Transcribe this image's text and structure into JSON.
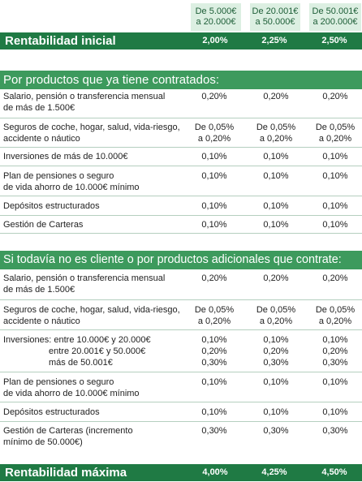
{
  "tiers": [
    "De 5.000€\na 20.000€",
    "De 20.001€\na 50.000€",
    "De 50.001€\na 200.000€"
  ],
  "initial": {
    "label": "Rentabilidad inicial",
    "values": [
      "2,00%",
      "2,25%",
      "2,50%"
    ]
  },
  "section1": {
    "title": "Por productos que ya tiene contratados:",
    "rows": [
      {
        "label": "Salario, pensión o transferencia mensual\nde más de 1.500€",
        "values": [
          "0,20%",
          "0,20%",
          "0,20%"
        ]
      },
      {
        "label": "Seguros de coche, hogar, salud, vida-riesgo,\naccidente o náutico",
        "values": [
          "De 0,05%\na 0,20%",
          "De 0,05%\na 0,20%",
          "De 0,05%\na 0,20%"
        ]
      },
      {
        "label": "Inversiones de más de 10.000€",
        "values": [
          "0,10%",
          "0,10%",
          "0,10%"
        ]
      },
      {
        "label": "Plan de pensiones o seguro\nde vida ahorro de 10.000€ mínimo",
        "values": [
          "0,10%",
          "0,10%",
          "0,10%"
        ]
      },
      {
        "label": "Depósitos estructurados",
        "values": [
          "0,10%",
          "0,10%",
          "0,10%"
        ]
      },
      {
        "label": "Gestión de Carteras",
        "values": [
          "0,10%",
          "0,10%",
          "0,10%"
        ]
      }
    ]
  },
  "section2": {
    "title": "Si todavía no es cliente o por productos adicionales que contrate:",
    "rows": [
      {
        "label": "Salario, pensión o transferencia mensual\nde más de 1.500€",
        "values": [
          "0,20%",
          "0,20%",
          "0,20%"
        ]
      },
      {
        "label": "Seguros de coche, hogar, salud, vida-riesgo,\naccidente o náutico",
        "values": [
          "De 0,05%\na 0,20%",
          "De 0,05%\na 0,20%",
          "De 0,05%\na 0,20%"
        ]
      },
      {
        "label": "Inversiones:  entre 10.000€ y 20.000€",
        "sublabels": [
          "entre 20.001€ y 50.000€",
          "más de 50.001€"
        ],
        "values": [
          "0,10%\n0,20%\n0,30%",
          "0,10%\n0,20%\n0,30%",
          "0,10%\n0,20%\n0,30%"
        ]
      },
      {
        "label": "Plan de pensiones o seguro\nde vida ahorro de 10.000€ mínimo",
        "values": [
          "0,10%",
          "0,10%",
          "0,10%"
        ]
      },
      {
        "label": "Depósitos estructurados",
        "values": [
          "0,10%",
          "0,10%",
          "0,10%"
        ]
      },
      {
        "label": "Gestión de Carteras (incremento\nmínimo de 50.000€)",
        "values": [
          "0,30%",
          "0,30%",
          "0,30%"
        ]
      }
    ]
  },
  "maximum": {
    "label": "Rentabilidad máxima",
    "values": [
      "4,00%",
      "4,25%",
      "4,50%"
    ]
  },
  "colors": {
    "dark_green": "#1f7a44",
    "mid_green": "#3d9a5d",
    "light_green": "#dcefe2"
  }
}
